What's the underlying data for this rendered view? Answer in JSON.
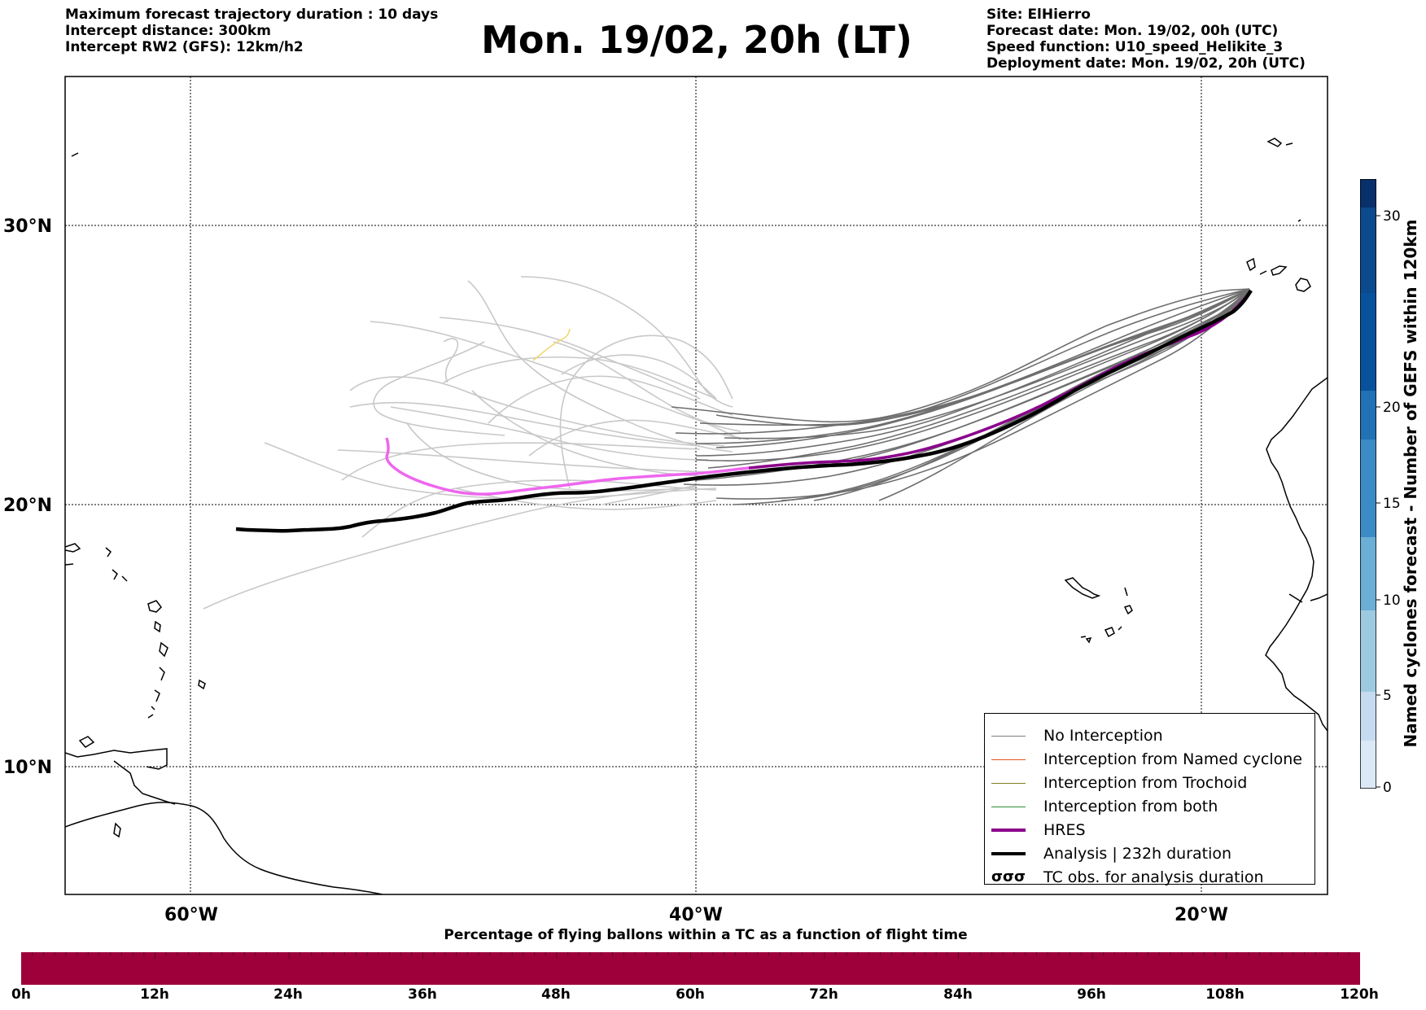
{
  "header": {
    "left_lines": [
      "Maximum forecast trajectory duration : 10 days",
      "Intercept distance: 300km",
      "Intercept RW2 (GFS):  12km/h2"
    ],
    "title": "Mon. 19/02, 20h (LT)",
    "right_lines": [
      "Site: ElHierro",
      "Forecast date: Mon. 19/02, 00h (UTC)",
      "Speed function: U10_speed_Helikite_3",
      "Deployment date: Mon. 19/02, 20h (UTC)"
    ]
  },
  "map": {
    "lat_labels": [
      "30°N",
      "20°N",
      "10°N"
    ],
    "lon_labels": [
      "60°W",
      "40°W",
      "20°W"
    ],
    "colors": {
      "no_interception": "#6e6e6e",
      "ensemble_light": "#c8c8c8",
      "hres": "#8b008b",
      "hres_light": "#ee66ee",
      "analysis": "#000000",
      "yellow_track": "#f0d870"
    }
  },
  "legend": {
    "items": [
      {
        "label": "No Interception",
        "color": "#808080",
        "style": "thin"
      },
      {
        "label": "Interception from Named cyclone",
        "color": "#e8531f",
        "style": "thin"
      },
      {
        "label": "Interception from Trochoid",
        "color": "#808020",
        "style": "thin"
      },
      {
        "label": "Interception from both",
        "color": "#2e8b2e",
        "style": "thin"
      },
      {
        "label": "HRES",
        "color": "#8b008b",
        "style": "thick"
      },
      {
        "label": "Analysis | 232h duration",
        "color": "#000000",
        "style": "thick"
      },
      {
        "label": "TC obs. for analysis duration",
        "color": "#000000",
        "style": "symbol",
        "symbol_text": "σσσ"
      }
    ]
  },
  "colorbar": {
    "title": "Named cyclones forecast - Number of GEFS within 120km",
    "ticks": [
      "0",
      "5",
      "10",
      "15",
      "20",
      "30"
    ],
    "colors": [
      "#dbe9f6",
      "#c6dbef",
      "#9ecae1",
      "#6baed6",
      "#4292c6",
      "#2171b5",
      "#08519c",
      "#08306b"
    ]
  },
  "timebar": {
    "title": "Percentage of flying ballons within a TC as a function of flight time",
    "fill_color": "#9e003a",
    "ticks": [
      "0h",
      "12h",
      "24h",
      "36h",
      "48h",
      "60h",
      "72h",
      "84h",
      "96h",
      "108h",
      "120h"
    ]
  }
}
